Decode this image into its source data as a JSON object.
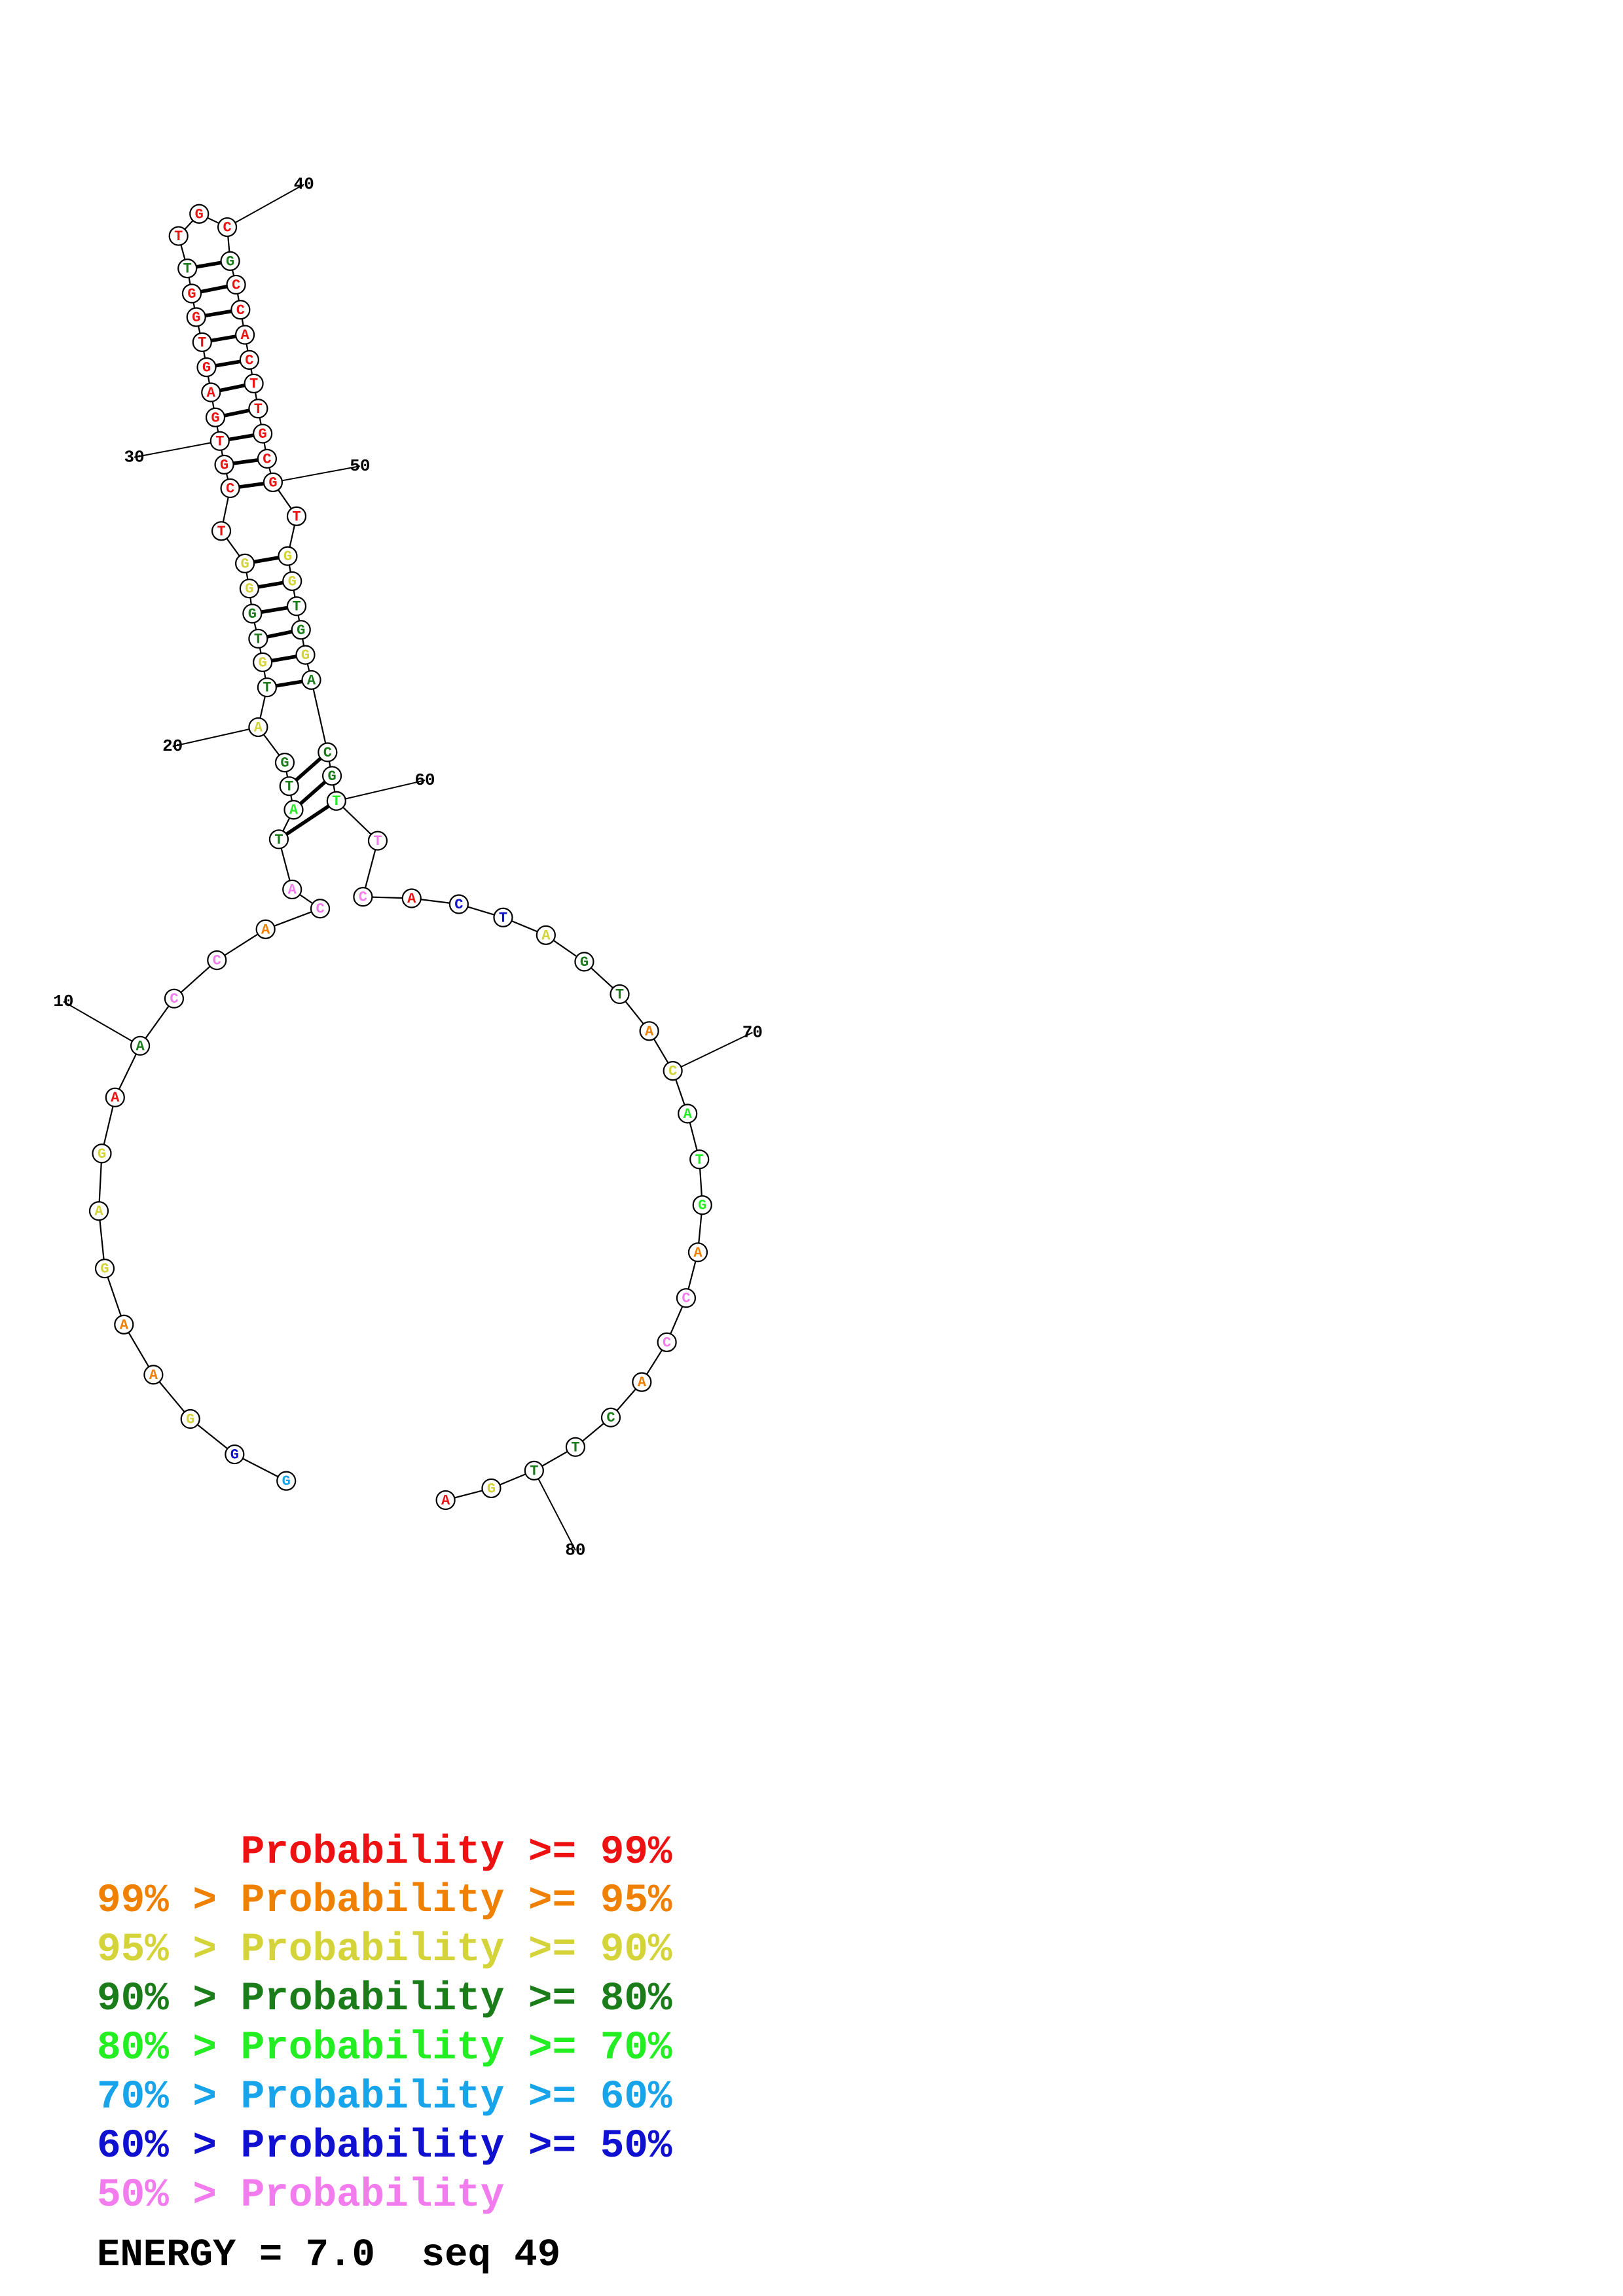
{
  "colors": {
    "p99": "#ee1111",
    "p95": "#f08000",
    "p90": "#d4d43a",
    "p80": "#1a7d1a",
    "p70": "#22ee22",
    "p60": "#17a4ea",
    "p50": "#1010d0",
    "plow": "#f27cee"
  },
  "sequence": [
    {
      "n": 1,
      "base": "G",
      "p": "p60"
    },
    {
      "n": 2,
      "base": "G",
      "p": "p50"
    },
    {
      "n": 3,
      "base": "G",
      "p": "p90"
    },
    {
      "n": 4,
      "base": "A",
      "p": "p95"
    },
    {
      "n": 5,
      "base": "A",
      "p": "p95"
    },
    {
      "n": 6,
      "base": "G",
      "p": "p90"
    },
    {
      "n": 7,
      "base": "A",
      "p": "p90"
    },
    {
      "n": 8,
      "base": "G",
      "p": "p90"
    },
    {
      "n": 9,
      "base": "A",
      "p": "p99"
    },
    {
      "n": 10,
      "base": "A",
      "p": "p80"
    },
    {
      "n": 11,
      "base": "C",
      "p": "plow"
    },
    {
      "n": 12,
      "base": "C",
      "p": "plow"
    },
    {
      "n": 13,
      "base": "A",
      "p": "p95"
    },
    {
      "n": 14,
      "base": "C",
      "p": "plow"
    },
    {
      "n": 15,
      "base": "A",
      "p": "plow"
    },
    {
      "n": 16,
      "base": "T",
      "p": "p80"
    },
    {
      "n": 17,
      "base": "A",
      "p": "p70"
    },
    {
      "n": 18,
      "base": "T",
      "p": "p80"
    },
    {
      "n": 19,
      "base": "G",
      "p": "p80"
    },
    {
      "n": 20,
      "base": "A",
      "p": "p90"
    },
    {
      "n": 21,
      "base": "T",
      "p": "p80"
    },
    {
      "n": 22,
      "base": "G",
      "p": "p90"
    },
    {
      "n": 23,
      "base": "T",
      "p": "p80"
    },
    {
      "n": 24,
      "base": "G",
      "p": "p80"
    },
    {
      "n": 25,
      "base": "G",
      "p": "p90"
    },
    {
      "n": 26,
      "base": "G",
      "p": "p90"
    },
    {
      "n": 27,
      "base": "T",
      "p": "p99"
    },
    {
      "n": 28,
      "base": "C",
      "p": "p99"
    },
    {
      "n": 29,
      "base": "G",
      "p": "p99"
    },
    {
      "n": 30,
      "base": "T",
      "p": "p99"
    },
    {
      "n": 31,
      "base": "G",
      "p": "p99"
    },
    {
      "n": 32,
      "base": "A",
      "p": "p99"
    },
    {
      "n": 33,
      "base": "G",
      "p": "p99"
    },
    {
      "n": 34,
      "base": "T",
      "p": "p99"
    },
    {
      "n": 35,
      "base": "G",
      "p": "p99"
    },
    {
      "n": 36,
      "base": "G",
      "p": "p99"
    },
    {
      "n": 37,
      "base": "T",
      "p": "p80"
    },
    {
      "n": 38,
      "base": "T",
      "p": "p99"
    },
    {
      "n": 39,
      "base": "G",
      "p": "p99"
    },
    {
      "n": 40,
      "base": "C",
      "p": "p99"
    },
    {
      "n": 41,
      "base": "G",
      "p": "p80"
    },
    {
      "n": 42,
      "base": "C",
      "p": "p99"
    },
    {
      "n": 43,
      "base": "C",
      "p": "p99"
    },
    {
      "n": 44,
      "base": "A",
      "p": "p99"
    },
    {
      "n": 45,
      "base": "C",
      "p": "p99"
    },
    {
      "n": 46,
      "base": "T",
      "p": "p99"
    },
    {
      "n": 47,
      "base": "T",
      "p": "p99"
    },
    {
      "n": 48,
      "base": "G",
      "p": "p99"
    },
    {
      "n": 49,
      "base": "C",
      "p": "p99"
    },
    {
      "n": 50,
      "base": "G",
      "p": "p99"
    },
    {
      "n": 51,
      "base": "T",
      "p": "p99"
    },
    {
      "n": 52,
      "base": "G",
      "p": "p90"
    },
    {
      "n": 53,
      "base": "G",
      "p": "p90"
    },
    {
      "n": 54,
      "base": "T",
      "p": "p80"
    },
    {
      "n": 55,
      "base": "G",
      "p": "p80"
    },
    {
      "n": 56,
      "base": "G",
      "p": "p90"
    },
    {
      "n": 57,
      "base": "A",
      "p": "p80"
    },
    {
      "n": 58,
      "base": "C",
      "p": "p80"
    },
    {
      "n": 59,
      "base": "G",
      "p": "p80"
    },
    {
      "n": 60,
      "base": "T",
      "p": "p70"
    },
    {
      "n": 61,
      "base": "T",
      "p": "plow"
    },
    {
      "n": 62,
      "base": "C",
      "p": "plow"
    },
    {
      "n": 63,
      "base": "A",
      "p": "p99"
    },
    {
      "n": 64,
      "base": "C",
      "p": "p50"
    },
    {
      "n": 65,
      "base": "T",
      "p": "p50"
    },
    {
      "n": 66,
      "base": "A",
      "p": "p90"
    },
    {
      "n": 67,
      "base": "G",
      "p": "p80"
    },
    {
      "n": 68,
      "base": "T",
      "p": "p80"
    },
    {
      "n": 69,
      "base": "A",
      "p": "p95"
    },
    {
      "n": 70,
      "base": "C",
      "p": "p90"
    },
    {
      "n": 71,
      "base": "A",
      "p": "p70"
    },
    {
      "n": 72,
      "base": "T",
      "p": "p70"
    },
    {
      "n": 73,
      "base": "G",
      "p": "p70"
    },
    {
      "n": 74,
      "base": "A",
      "p": "p95"
    },
    {
      "n": 75,
      "base": "C",
      "p": "plow"
    },
    {
      "n": 76,
      "base": "C",
      "p": "plow"
    },
    {
      "n": 77,
      "base": "A",
      "p": "p95"
    },
    {
      "n": 78,
      "base": "C",
      "p": "p80"
    },
    {
      "n": 79,
      "base": "T",
      "p": "p80"
    },
    {
      "n": 80,
      "base": "T",
      "p": "p80"
    },
    {
      "n": 81,
      "base": "G",
      "p": "p90"
    },
    {
      "n": 82,
      "base": "A",
      "p": "p99"
    }
  ],
  "pairs": [
    [
      16,
      60
    ],
    [
      17,
      59
    ],
    [
      18,
      58
    ],
    [
      21,
      57
    ],
    [
      22,
      56
    ],
    [
      23,
      55
    ],
    [
      24,
      54
    ],
    [
      25,
      53
    ],
    [
      26,
      52
    ],
    [
      28,
      50
    ],
    [
      29,
      49
    ],
    [
      30,
      48
    ],
    [
      31,
      47
    ],
    [
      32,
      46
    ],
    [
      33,
      45
    ],
    [
      34,
      44
    ],
    [
      35,
      43
    ],
    [
      36,
      42
    ],
    [
      37,
      41
    ]
  ],
  "index_labels": [
    "10",
    "20",
    "30",
    "40",
    "50",
    "60",
    "70",
    "80"
  ],
  "legend": [
    {
      "text": "      Probability >= 99%",
      "color": "p99"
    },
    {
      "text": "99% > Probability >= 95%",
      "color": "p95"
    },
    {
      "text": "95% > Probability >= 90%",
      "color": "p90"
    },
    {
      "text": "90% > Probability >= 80%",
      "color": "p80"
    },
    {
      "text": "80% > Probability >= 70%",
      "color": "p70"
    },
    {
      "text": "70% > Probability >= 60%",
      "color": "p60"
    },
    {
      "text": "60% > Probability >= 50%",
      "color": "p50"
    },
    {
      "text": "50% > Probability",
      "color": "plow"
    }
  ],
  "energy_text": "ENERGY = 7.0  seq 49"
}
